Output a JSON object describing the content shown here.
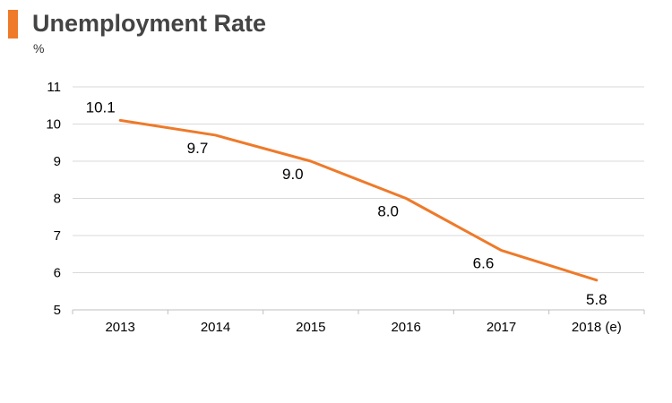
{
  "header": {
    "title": "Unemployment Rate",
    "unit": "%"
  },
  "colors": {
    "accent": "#ee7a2a",
    "line": "#ee7a2a",
    "grid": "#d9d9d9",
    "title": "#444444"
  },
  "chart_data": {
    "type": "line",
    "title": "Unemployment Rate",
    "ylabel": "%",
    "xlabel": "",
    "categories": [
      "2013",
      "2014",
      "2015",
      "2016",
      "2017",
      "2018 (e)"
    ],
    "series": [
      {
        "values": [
          10.1,
          9.7,
          9.0,
          8.0,
          6.6,
          5.8
        ],
        "data_labels": [
          "10.1",
          "9.7",
          "9.0",
          "8.0",
          "6.6",
          "5.8"
        ]
      }
    ],
    "ylim": [
      5,
      11
    ],
    "yticks": [
      5,
      6,
      7,
      8,
      9,
      10,
      11
    ],
    "grid": true,
    "legend": "none"
  }
}
